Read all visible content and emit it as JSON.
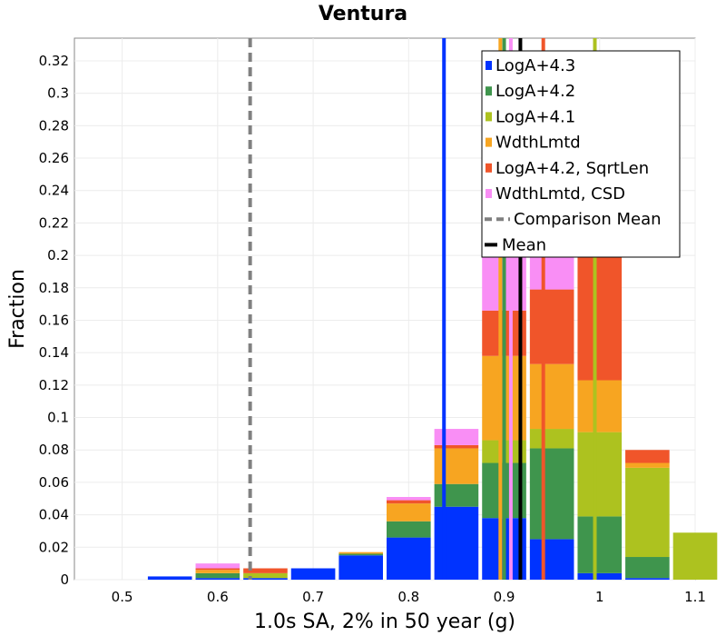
{
  "chart_data": {
    "type": "bar",
    "stacked": true,
    "title": "Ventura",
    "xlabel": "1.0s SA, 2% in 50 year (g)",
    "ylabel": "Fraction",
    "xlim": [
      0.45,
      1.1
    ],
    "ylim": [
      0,
      0.334
    ],
    "x_ticks": [
      "0.5",
      "0.6",
      "0.7",
      "0.8",
      "0.9",
      "1",
      "1.1"
    ],
    "x_tick_values": [
      0.5,
      0.6,
      0.7,
      0.8,
      0.9,
      1.0,
      1.1
    ],
    "y_ticks": [
      "0",
      "0.02",
      "0.04",
      "0.06",
      "0.08",
      "0.1",
      "0.12",
      "0.14",
      "0.16",
      "0.18",
      "0.2",
      "0.22",
      "0.24",
      "0.26",
      "0.28",
      "0.3",
      "0.32"
    ],
    "y_tick_values": [
      0,
      0.02,
      0.04,
      0.06,
      0.08,
      0.1,
      0.12,
      0.14,
      0.16,
      0.18,
      0.2,
      0.22,
      0.24,
      0.26,
      0.28,
      0.3,
      0.32
    ],
    "grid": true,
    "legend_position": "top-right",
    "bin_width": 0.05,
    "bins": [
      0.5,
      0.55,
      0.6,
      0.65,
      0.7,
      0.75,
      0.8,
      0.85,
      0.9,
      0.95,
      1.0,
      1.05,
      1.1
    ],
    "series": [
      {
        "name": "LogA+4.3",
        "color": "#0033ff",
        "values": [
          0,
          0.002,
          0.001,
          0.001,
          0.007,
          0.015,
          0.026,
          0.045,
          0.038,
          0.025,
          0.004,
          0.001,
          0
        ]
      },
      {
        "name": "LogA+4.2",
        "color": "#3f954d",
        "values": [
          0,
          0,
          0.003,
          0,
          0,
          0.001,
          0.01,
          0.014,
          0.034,
          0.056,
          0.035,
          0.013,
          0
        ]
      },
      {
        "name": "LogA+4.1",
        "color": "#adc21f",
        "values": [
          0,
          0,
          0,
          0.003,
          0,
          0,
          0,
          0,
          0.014,
          0.012,
          0.052,
          0.055,
          0.029
        ]
      },
      {
        "name": "WdthLmtd",
        "color": "#f7a521",
        "values": [
          0,
          0,
          0.002,
          0,
          0,
          0.001,
          0.011,
          0.022,
          0.052,
          0.04,
          0.032,
          0.003,
          0
        ]
      },
      {
        "name": "LogA+4.2, SqrtLen",
        "color": "#f0552a",
        "values": [
          0,
          0,
          0.001,
          0.003,
          0,
          0,
          0.002,
          0.002,
          0.028,
          0.046,
          0.08,
          0.008,
          0
        ]
      },
      {
        "name": "WdthLmtd, CSD",
        "color": "#f98ef5",
        "values": [
          0,
          0,
          0.003,
          0,
          0,
          0,
          0.002,
          0.01,
          0.064,
          0.071,
          0.05,
          0,
          0
        ]
      }
    ],
    "vertical_lines": [
      {
        "label": "LogA+4.3",
        "x": 0.837,
        "color": "#0033ff",
        "style": "solid"
      },
      {
        "label": "LogA+4.2",
        "x": 0.9,
        "color": "#3f954d",
        "style": "solid"
      },
      {
        "label": "LogA+4.1",
        "x": 0.995,
        "color": "#adc21f",
        "style": "solid"
      },
      {
        "label": "WdthLmtd",
        "x": 0.896,
        "color": "#f7a521",
        "style": "solid"
      },
      {
        "label": "LogA+4.2, SqrtLen",
        "x": 0.941,
        "color": "#f0552a",
        "style": "solid"
      },
      {
        "label": "WdthLmtd, CSD",
        "x": 0.907,
        "color": "#f98ef5",
        "style": "solid"
      },
      {
        "label": "Comparison Mean",
        "x": 0.634,
        "color": "#808080",
        "style": "dashed"
      },
      {
        "label": "Mean",
        "x": 0.917,
        "color": "#000000",
        "style": "solid"
      }
    ],
    "legend": [
      {
        "label": "LogA+4.3",
        "color": "#0033ff",
        "kind": "box"
      },
      {
        "label": "LogA+4.2",
        "color": "#3f954d",
        "kind": "box"
      },
      {
        "label": "LogA+4.1",
        "color": "#adc21f",
        "kind": "box"
      },
      {
        "label": "WdthLmtd",
        "color": "#f7a521",
        "kind": "box"
      },
      {
        "label": "LogA+4.2, SqrtLen",
        "color": "#f0552a",
        "kind": "box"
      },
      {
        "label": "WdthLmtd, CSD",
        "color": "#f98ef5",
        "kind": "box"
      },
      {
        "label": "Comparison Mean",
        "color": "#808080",
        "kind": "dashed"
      },
      {
        "label": "Mean",
        "color": "#000000",
        "kind": "line"
      }
    ]
  }
}
